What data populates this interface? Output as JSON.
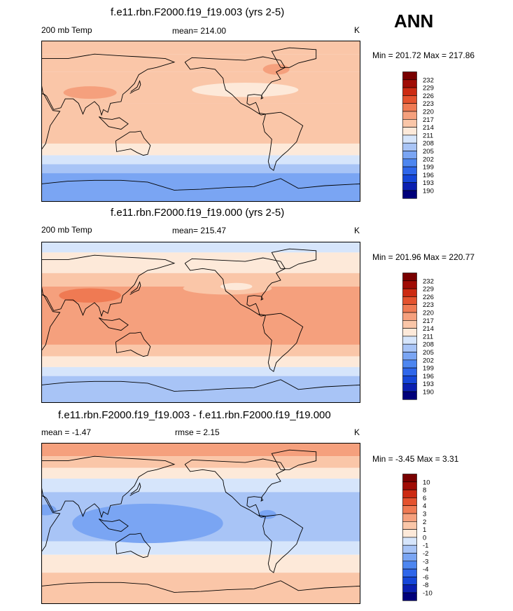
{
  "season": "ANN",
  "panels": [
    {
      "title": "f.e11.rbn.F2000.f19_f19.003 (yrs 2-5)",
      "left_label": "200 mb Temp",
      "center_label": "mean= 214.00",
      "right_label": "K",
      "minmax": "Min = 201.72 Max = 217.86"
    },
    {
      "title": "f.e11.rbn.F2000.f19_f19.000 (yrs 2-5)",
      "left_label": "200 mb Temp",
      "center_label": "mean= 215.47",
      "right_label": "K",
      "minmax": "Min = 201.96 Max = 220.77"
    },
    {
      "title": "f.e11.rbn.F2000.f19_f19.003 - f.e11.rbn.F2000.f19_f19.000",
      "left_label": "mean =  -1.47",
      "center_label": "rmse =   2.15",
      "right_label": "K",
      "minmax": "Min =  -3.45 Max =   3.31"
    }
  ],
  "chart_data": [
    {
      "type": "heatmap",
      "title": "f.e11.rbn.F2000.f19_f19.003 (yrs 2-5)",
      "variable": "200 mb Temp",
      "units": "K",
      "mean": 214.0,
      "min": 201.72,
      "max": 217.86,
      "colorbar_levels": [
        190,
        193,
        196,
        199,
        202,
        205,
        208,
        211,
        214,
        217,
        220,
        223,
        226,
        229,
        232
      ],
      "zonal_bands": [
        {
          "lat": [
            75,
            90
          ],
          "level": 214
        },
        {
          "lat": [
            55,
            75
          ],
          "level": 214
        },
        {
          "lat": [
            20,
            55
          ],
          "level": 214
        },
        {
          "lat": [
            -25,
            20
          ],
          "level": 214
        },
        {
          "lat": [
            -38,
            -25
          ],
          "level": 211
        },
        {
          "lat": [
            -48,
            -38
          ],
          "level": 208
        },
        {
          "lat": [
            -58,
            -48
          ],
          "level": 205
        },
        {
          "lat": [
            -90,
            -58
          ],
          "level": 202
        }
      ],
      "blobs": [
        {
          "lon": 85,
          "lat": 32,
          "rlon": 30,
          "rlat": 7,
          "level": 217
        },
        {
          "lon": 260,
          "lat": 35,
          "rlon": 60,
          "rlat": 8,
          "level": 211
        },
        {
          "lon": 295,
          "lat": 58,
          "rlon": 15,
          "rlat": 6,
          "level": 217
        }
      ]
    },
    {
      "type": "heatmap",
      "title": "f.e11.rbn.F2000.f19_f19.000 (yrs 2-5)",
      "variable": "200 mb Temp",
      "units": "K",
      "mean": 215.47,
      "min": 201.96,
      "max": 220.77,
      "colorbar_levels": [
        190,
        193,
        196,
        199,
        202,
        205,
        208,
        211,
        214,
        217,
        220,
        223,
        226,
        229,
        232
      ],
      "zonal_bands": [
        {
          "lat": [
            78,
            90
          ],
          "level": 208
        },
        {
          "lat": [
            55,
            78
          ],
          "level": 211
        },
        {
          "lat": [
            40,
            55
          ],
          "level": 214
        },
        {
          "lat": [
            -25,
            40
          ],
          "level": 217
        },
        {
          "lat": [
            -38,
            -25
          ],
          "level": 214
        },
        {
          "lat": [
            -50,
            -38
          ],
          "level": 211
        },
        {
          "lat": [
            -60,
            -50
          ],
          "level": 208
        },
        {
          "lat": [
            -90,
            -60
          ],
          "level": 205
        }
      ],
      "blobs": [
        {
          "lon": 85,
          "lat": 30,
          "rlon": 35,
          "rlat": 8,
          "level": 220
        },
        {
          "lon": 240,
          "lat": 38,
          "rlon": 50,
          "rlat": 7,
          "level": 214
        },
        {
          "lon": 250,
          "lat": 40,
          "rlon": 18,
          "rlat": 4,
          "level": 211
        }
      ]
    },
    {
      "type": "heatmap",
      "title": "f.e11.rbn.F2000.f19_f19.003 - f.e11.rbn.F2000.f19_f19.000",
      "variable": "difference",
      "units": "K",
      "mean": -1.47,
      "rmse": 2.15,
      "min": -3.45,
      "max": 3.31,
      "colorbar_levels": [
        -10,
        -8,
        -6,
        -4,
        -3,
        -2,
        -1,
        0,
        1,
        2,
        3,
        4,
        6,
        8,
        10
      ],
      "zonal_bands": [
        {
          "lat": [
            75,
            90
          ],
          "level": 2
        },
        {
          "lat": [
            62,
            75
          ],
          "level": 1
        },
        {
          "lat": [
            50,
            62
          ],
          "level": 0
        },
        {
          "lat": [
            35,
            50
          ],
          "level": -1
        },
        {
          "lat": [
            -20,
            35
          ],
          "level": -2
        },
        {
          "lat": [
            -35,
            -20
          ],
          "level": -1
        },
        {
          "lat": [
            -55,
            -35
          ],
          "level": 0
        },
        {
          "lat": [
            -90,
            -55
          ],
          "level": 1
        }
      ],
      "blobs": [
        {
          "lon": 150,
          "lat": 0,
          "rlon": 85,
          "rlat": 22,
          "level": -3
        },
        {
          "lon": 35,
          "lat": 15,
          "rlon": 12,
          "rlat": 6,
          "level": -3
        },
        {
          "lon": 285,
          "lat": 10,
          "rlon": 10,
          "rlat": 5,
          "level": -3
        }
      ]
    }
  ]
}
